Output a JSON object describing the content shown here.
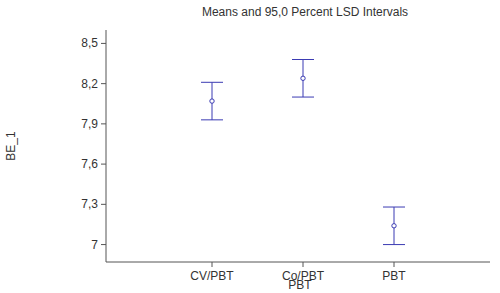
{
  "chart_data": {
    "type": "interval",
    "title": "Means and 95,0 Percent LSD Intervals",
    "x_label": "PBT",
    "y_label": "BE_1",
    "categories": [
      "CV/PBT",
      "Co/PBT",
      "PBT"
    ],
    "values": [
      8.07,
      8.24,
      7.14
    ],
    "errors": [
      0.14,
      0.14,
      0.14
    ],
    "color": "#3b3bb3",
    "marker": "circle",
    "ylim": [
      6.87,
      8.6
    ],
    "yticks": [
      7,
      {
        "value": 7.3,
        "label": "7,3"
      },
      {
        "value": 7.6,
        "label": "7,6"
      },
      {
        "value": 7.9,
        "label": "7,9"
      },
      {
        "value": 8.2,
        "label": "8,2"
      },
      {
        "value": 8.5,
        "label": "8,5"
      }
    ],
    "grid": false
  }
}
